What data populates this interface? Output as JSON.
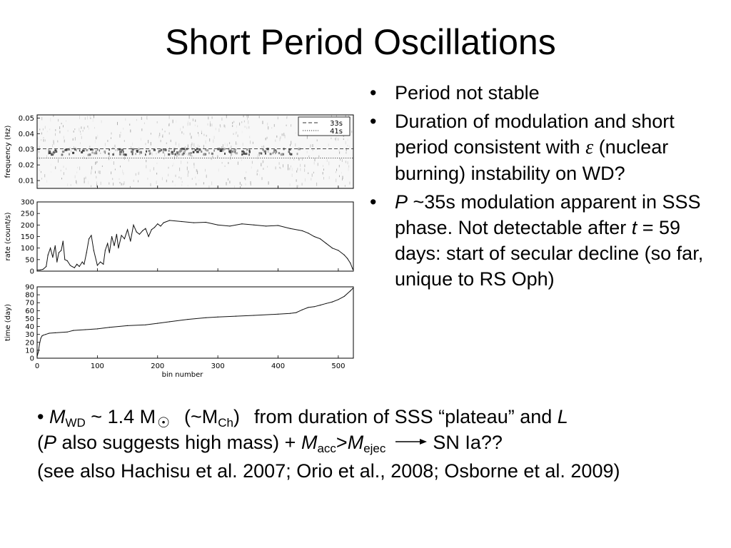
{
  "slide": {
    "title": "Short Period Oscillations"
  },
  "bullets": {
    "b1": "Period not stable",
    "b2_before": "Duration of modulation and short period consistent with ",
    "b2_symbol": "ε",
    "b2_after": " (nuclear burning) instability on WD?",
    "b3_var_p": "P",
    "b3_mid": " ~35s modulation apparent in SSS phase. Not detectable after ",
    "b3_var_t": "t",
    "b3_after": " = 59 days: start of secular decline (so far, unique to RS Oph)"
  },
  "bottom": {
    "bullet": "•",
    "m": "M",
    "wd": "WD",
    "approx_mass": " ~ 1.4 M",
    "sun_symbol": "☉",
    "paren_open": "(~M",
    "ch": "Ch",
    "paren_close": ")",
    "from_text": "from duration of SSS “plateau” and ",
    "l": "L",
    "line2_open": "(",
    "p": "P",
    "line2_mid": " also suggests high mass) + ",
    "m2": "M",
    "acc": "acc",
    "gt": ">",
    "m3": "M",
    "ejec": "ejec",
    "snia": "SN Ia??",
    "refs": "(see also Hachisu et al. 2007; Orio et al., 2008; Osborne et al. 2009)"
  },
  "chart_data": [
    {
      "type": "heatmap",
      "ylabel": "frequency (Hz)",
      "xlim": [
        0,
        525
      ],
      "ylim": [
        0.005,
        0.052
      ],
      "yticks": [
        "0.01",
        "0.02",
        "0.03",
        "0.04",
        "0.05"
      ],
      "ytick_values": [
        0.01,
        0.02,
        0.03,
        0.04,
        0.05
      ],
      "legend": {
        "position": "top-right",
        "entries": [
          "33s",
          "41s"
        ]
      },
      "reference_lines": [
        {
          "name": "33s",
          "value": 0.0303,
          "style": "dashed"
        },
        {
          "name": "41s",
          "value": 0.0244,
          "style": "dotted"
        }
      ],
      "signal_band": {
        "x_range": [
          15,
          440
        ],
        "freq_range": [
          0.027,
          0.031
        ]
      }
    },
    {
      "type": "line",
      "ylabel": "rate (count/s)",
      "xlim": [
        0,
        525
      ],
      "ylim": [
        0,
        300
      ],
      "yticks": [
        "0",
        "50",
        "100",
        "150",
        "200",
        "250",
        "300"
      ],
      "ytick_values": [
        0,
        50,
        100,
        150,
        200,
        250,
        300
      ],
      "x": [
        0,
        5,
        10,
        15,
        18,
        22,
        26,
        30,
        33,
        36,
        40,
        43,
        46,
        50,
        55,
        58,
        62,
        66,
        70,
        75,
        78,
        82,
        86,
        90,
        94,
        100,
        105,
        110,
        113,
        117,
        120,
        124,
        128,
        132,
        135,
        140,
        145,
        150,
        155,
        160,
        165,
        170,
        175,
        180,
        185,
        190,
        195,
        200,
        205,
        210,
        220,
        240,
        260,
        280,
        300,
        320,
        340,
        360,
        380,
        400,
        420,
        440,
        450,
        460,
        470,
        480,
        490,
        500,
        510,
        515,
        520,
        524
      ],
      "y": [
        5,
        5,
        8,
        20,
        70,
        100,
        60,
        110,
        40,
        80,
        90,
        130,
        50,
        45,
        25,
        20,
        15,
        30,
        20,
        40,
        30,
        80,
        140,
        155,
        90,
        25,
        40,
        30,
        90,
        120,
        80,
        150,
        110,
        160,
        100,
        155,
        140,
        180,
        130,
        200,
        170,
        160,
        175,
        185,
        150,
        180,
        190,
        205,
        195,
        210,
        220,
        215,
        210,
        212,
        200,
        195,
        205,
        200,
        195,
        198,
        185,
        175,
        165,
        150,
        140,
        120,
        100,
        90,
        70,
        55,
        35,
        8
      ]
    },
    {
      "type": "line",
      "ylabel": "time (day)",
      "xlabel": "bin number",
      "xlim": [
        0,
        525
      ],
      "ylim": [
        0,
        90
      ],
      "xticks": [
        "0",
        "100",
        "200",
        "300",
        "400",
        "500"
      ],
      "xtick_values": [
        0,
        100,
        200,
        300,
        400,
        500
      ],
      "yticks": [
        "0",
        "10",
        "20",
        "30",
        "40",
        "50",
        "60",
        "70",
        "80",
        "90"
      ],
      "ytick_values": [
        0,
        10,
        20,
        30,
        40,
        50,
        60,
        70,
        80,
        90
      ],
      "x": [
        0,
        2,
        4,
        6,
        8,
        10,
        14,
        20,
        30,
        50,
        60,
        80,
        100,
        120,
        150,
        180,
        200,
        220,
        250,
        280,
        300,
        330,
        360,
        400,
        420,
        430,
        440,
        450,
        460,
        470,
        480,
        490,
        500,
        510,
        520,
        524
      ],
      "y": [
        2,
        8,
        18,
        25,
        28,
        29,
        30,
        31.5,
        32,
        33,
        35,
        36,
        37,
        39,
        41,
        42,
        44,
        46,
        49,
        51,
        52,
        53,
        54,
        55.5,
        56.5,
        57.5,
        61,
        64,
        65,
        67,
        69,
        71,
        74,
        78,
        85,
        88
      ]
    }
  ]
}
